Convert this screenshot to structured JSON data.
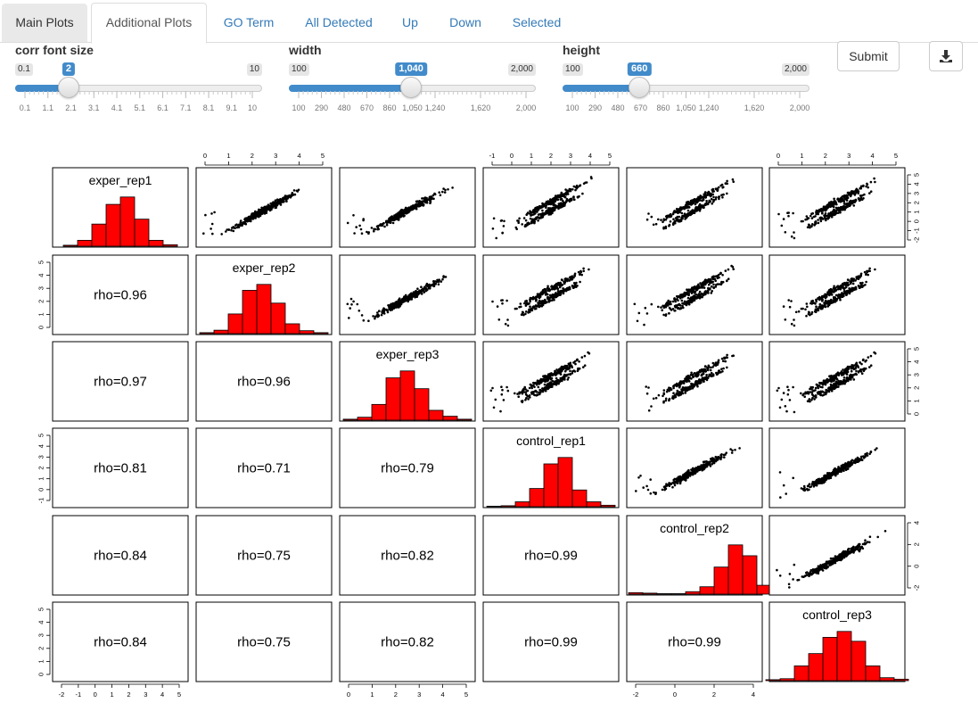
{
  "tabs": [
    {
      "label": "Main Plots",
      "name": "tab-main-plots"
    },
    {
      "label": "Additional Plots",
      "name": "tab-additional-plots"
    },
    {
      "label": "GO Term",
      "name": "tab-go-term"
    },
    {
      "label": "All Detected",
      "name": "tab-all-detected"
    },
    {
      "label": "Up",
      "name": "tab-up"
    },
    {
      "label": "Down",
      "name": "tab-down"
    },
    {
      "label": "Selected",
      "name": "tab-selected"
    }
  ],
  "sliders": {
    "corr": {
      "label": "corr font size",
      "min_label": "0.1",
      "max_label": "10",
      "value_label": "2",
      "min": 0.1,
      "max": 10,
      "value": 2,
      "ticks": [
        "0.1",
        "1.1",
        "2.1",
        "3.1",
        "4.1",
        "5.1",
        "6.1",
        "7.1",
        "8.1",
        "9.1",
        "10"
      ]
    },
    "width": {
      "label": "width",
      "min_label": "100",
      "max_label": "2,000",
      "value_label": "1,040",
      "min": 100,
      "max": 2000,
      "value": 1040,
      "ticks": [
        "100",
        "290",
        "480",
        "670",
        "860",
        "1,050",
        "1,240",
        "1,620",
        "2,000"
      ]
    },
    "height": {
      "label": "height",
      "min_label": "100",
      "max_label": "2,000",
      "value_label": "660",
      "min": 100,
      "max": 2000,
      "value": 660,
      "ticks": [
        "100",
        "290",
        "480",
        "670",
        "860",
        "1,050",
        "1,240",
        "1,620",
        "2,000"
      ]
    }
  },
  "buttons": {
    "submit_label": "Submit",
    "download_icon": "download-icon"
  },
  "chart_data": {
    "type": "scatter",
    "variables": [
      "exper_rep1",
      "exper_rep2",
      "exper_rep3",
      "control_rep1",
      "control_rep2",
      "control_rep3"
    ],
    "correlations": [
      {
        "row": "exper_rep2",
        "col": "exper_rep1",
        "label": "rho=0.96"
      },
      {
        "row": "exper_rep3",
        "col": "exper_rep1",
        "label": "rho=0.97"
      },
      {
        "row": "exper_rep3",
        "col": "exper_rep2",
        "label": "rho=0.96"
      },
      {
        "row": "control_rep1",
        "col": "exper_rep1",
        "label": "rho=0.81"
      },
      {
        "row": "control_rep1",
        "col": "exper_rep2",
        "label": "rho=0.71"
      },
      {
        "row": "control_rep1",
        "col": "exper_rep3",
        "label": "rho=0.79"
      },
      {
        "row": "control_rep2",
        "col": "exper_rep1",
        "label": "rho=0.84"
      },
      {
        "row": "control_rep2",
        "col": "exper_rep2",
        "label": "rho=0.75"
      },
      {
        "row": "control_rep2",
        "col": "exper_rep3",
        "label": "rho=0.82"
      },
      {
        "row": "control_rep2",
        "col": "control_rep1",
        "label": "rho=0.99"
      },
      {
        "row": "control_rep3",
        "col": "exper_rep1",
        "label": "rho=0.84"
      },
      {
        "row": "control_rep3",
        "col": "exper_rep2",
        "label": "rho=0.75"
      },
      {
        "row": "control_rep3",
        "col": "exper_rep3",
        "label": "rho=0.82"
      },
      {
        "row": "control_rep3",
        "col": "control_rep1",
        "label": "rho=0.99"
      },
      {
        "row": "control_rep3",
        "col": "control_rep2",
        "label": "rho=0.99"
      }
    ],
    "histograms": [
      {
        "name": "exper_rep1",
        "counts": [
          0.02,
          0.12,
          0.45,
          0.85,
          1.0,
          0.55,
          0.12,
          0.03
        ]
      },
      {
        "name": "exper_rep2",
        "counts": [
          0.02,
          0.07,
          0.4,
          0.88,
          1.0,
          0.62,
          0.2,
          0.06,
          0.02
        ]
      },
      {
        "name": "exper_rep3",
        "counts": [
          0.02,
          0.06,
          0.32,
          0.86,
          1.0,
          0.64,
          0.2,
          0.08,
          0.02
        ]
      },
      {
        "name": "control_rep1",
        "counts": [
          0.01,
          0.02,
          0.1,
          0.37,
          0.87,
          1.0,
          0.34,
          0.1,
          0.03
        ]
      },
      {
        "name": "control_rep2",
        "counts": [
          0.03,
          0.02,
          0.01,
          0.01,
          0.05,
          0.15,
          0.55,
          1.0,
          0.78,
          0.18,
          0.05,
          0.01
        ]
      },
      {
        "name": "control_rep3",
        "counts": [
          0.02,
          0.04,
          0.3,
          0.55,
          0.88,
          1.0,
          0.8,
          0.3,
          0.06,
          0.03
        ]
      }
    ],
    "axes": {
      "top_1": [
        "0",
        "1",
        "2",
        "3",
        "4",
        "5"
      ],
      "top_3": [
        "-1",
        "0",
        "1",
        "2",
        "3",
        "4",
        "5"
      ],
      "top_5": [
        "0",
        "1",
        "2",
        "3",
        "4",
        "5"
      ],
      "right_0": [
        "-2",
        "-1",
        "0",
        "1",
        "2",
        "3",
        "4",
        "5"
      ],
      "left_1": [
        "0",
        "1",
        "2",
        "3",
        "4",
        "5"
      ],
      "right_2": [
        "0",
        "1",
        "2",
        "3",
        "4",
        "5"
      ],
      "left_3": [
        "-1",
        "0",
        "1",
        "2",
        "3",
        "4",
        "5"
      ],
      "right_4": [
        "-2",
        "0",
        "2",
        "4"
      ],
      "left_5": [
        "0",
        "1",
        "2",
        "3",
        "4",
        "5"
      ],
      "bottom_0": [
        "-2",
        "-1",
        "0",
        "1",
        "2",
        "3",
        "4",
        "5"
      ],
      "bottom_2": [
        "0",
        "1",
        "2",
        "3",
        "4",
        "5"
      ],
      "bottom_4": [
        "-2",
        "0",
        "2",
        "4"
      ]
    },
    "colors": {
      "histogram_fill": "#ff0000",
      "points": "#000000"
    }
  }
}
